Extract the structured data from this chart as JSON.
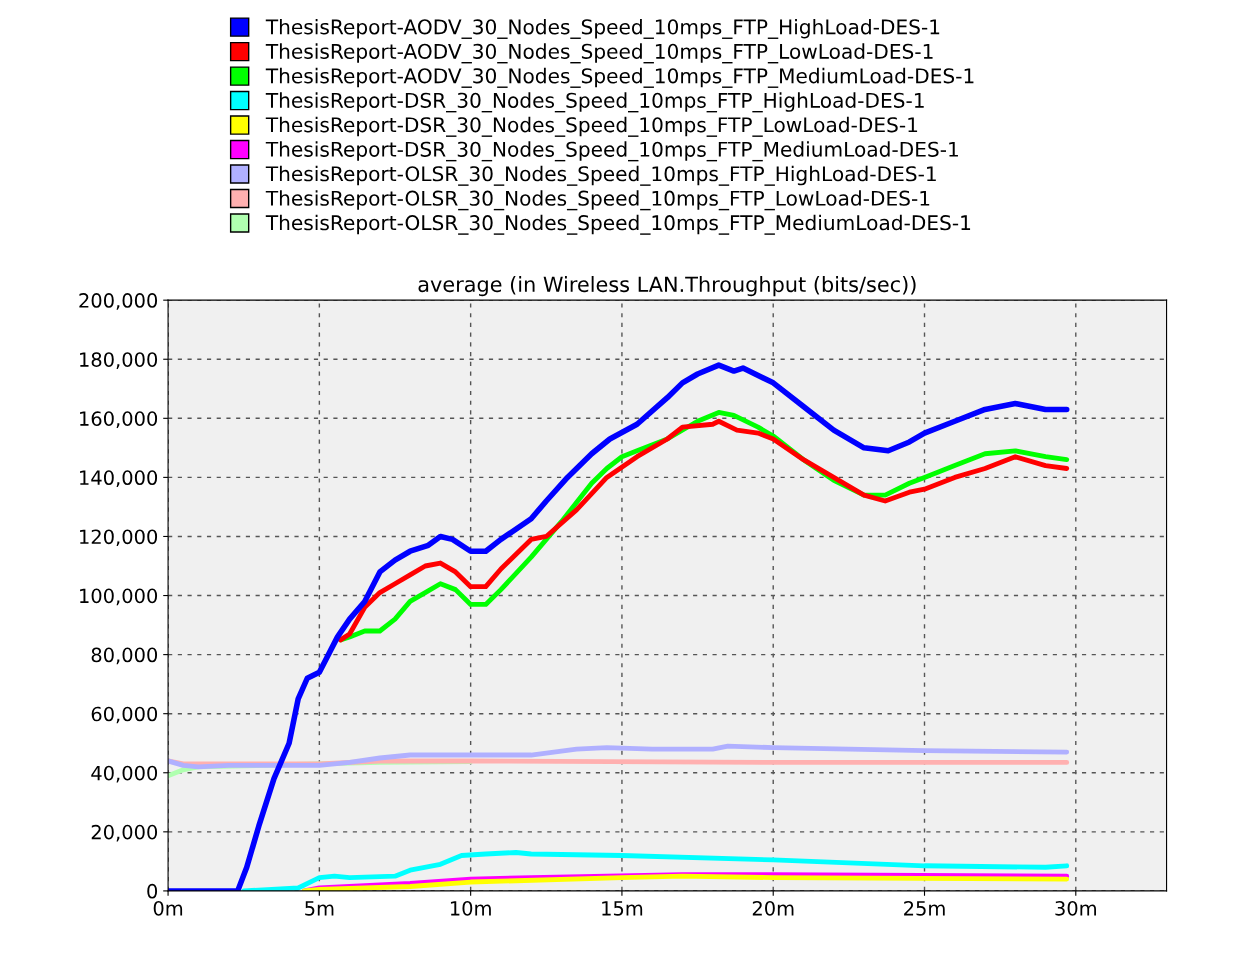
{
  "chart_data": {
    "type": "line",
    "title": "average (in Wireless LAN.Throughput (bits/sec))",
    "xlim": [
      0,
      33
    ],
    "xticks": [
      {
        "value": 0,
        "label": "0m"
      },
      {
        "value": 5,
        "label": "5m"
      },
      {
        "value": 10,
        "label": "10m"
      },
      {
        "value": 15,
        "label": "15m"
      },
      {
        "value": 20,
        "label": "20m"
      },
      {
        "value": 25,
        "label": "25m"
      },
      {
        "value": 30,
        "label": "30m"
      }
    ],
    "ylim": [
      0,
      200000
    ],
    "yticks": [
      {
        "value": 0,
        "label": "0"
      },
      {
        "value": 20000,
        "label": "20,000"
      },
      {
        "value": 40000,
        "label": "40,000"
      },
      {
        "value": 60000,
        "label": "60,000"
      },
      {
        "value": 80000,
        "label": "80,000"
      },
      {
        "value": 100000,
        "label": "100,000"
      },
      {
        "value": 120000,
        "label": "120,000"
      },
      {
        "value": 140000,
        "label": "140,000"
      },
      {
        "value": 160000,
        "label": "160,000"
      },
      {
        "value": 180000,
        "label": "180,000"
      },
      {
        "value": 200000,
        "label": "200,000"
      }
    ],
    "grid": true,
    "legend": "top",
    "marker": "none",
    "line_style": "solid",
    "series": [
      {
        "name": "ThesisReport-AODV_30_Nodes_Speed_10mps_FTP_HighLoad-DES-1",
        "color": "#0000ff",
        "x": [
          0,
          2.3,
          2.6,
          3,
          3.5,
          4,
          4.3,
          4.6,
          5,
          5.6,
          6,
          6.5,
          7,
          7.5,
          8,
          8.6,
          9,
          9.4,
          10,
          10.5,
          11,
          12,
          12.5,
          13.2,
          14,
          14.6,
          15.5,
          16.5,
          17,
          17.5,
          18.2,
          18.7,
          19,
          20,
          21,
          22,
          23,
          23.8,
          24.5,
          25,
          26,
          27,
          28,
          29,
          29.7
        ],
        "values": [
          0,
          0,
          8000,
          22000,
          38000,
          50000,
          65000,
          72000,
          74000,
          86000,
          92000,
          98000,
          108000,
          112000,
          115000,
          117000,
          120000,
          119000,
          115000,
          115000,
          119000,
          126000,
          132000,
          140000,
          148000,
          153000,
          158000,
          167000,
          172000,
          175000,
          178000,
          176000,
          177000,
          172000,
          164000,
          156000,
          150000,
          149000,
          152000,
          155000,
          159000,
          163000,
          165000,
          163000,
          163000
        ]
      },
      {
        "name": "ThesisReport-AODV_30_Nodes_Speed_10mps_FTP_LowLoad-DES-1",
        "color": "#ff0000",
        "x": [
          5.7,
          6,
          6.5,
          7,
          7.5,
          8,
          8.5,
          9,
          9.5,
          10,
          10.5,
          11,
          11.5,
          12,
          12.5,
          13.5,
          14.5,
          15.5,
          16.5,
          17,
          18,
          18.2,
          18.8,
          19.5,
          20,
          21,
          22,
          23,
          23.7,
          24.5,
          25,
          26,
          27,
          28,
          29,
          29.7
        ],
        "values": [
          85000,
          87000,
          96000,
          101000,
          104000,
          107000,
          110000,
          111000,
          108000,
          103000,
          103000,
          109000,
          114000,
          119000,
          120000,
          129000,
          140000,
          147000,
          153000,
          157000,
          158000,
          159000,
          156000,
          155000,
          153000,
          146000,
          140000,
          134000,
          132000,
          135000,
          136000,
          140000,
          143000,
          147000,
          144000,
          143000
        ]
      },
      {
        "name": "ThesisReport-AODV_30_Nodes_Speed_10mps_FTP_MediumLoad-DES-1",
        "color": "#00ff00",
        "x": [
          5.7,
          6,
          6.5,
          7,
          7.5,
          8,
          8.5,
          9,
          9.5,
          10,
          10.5,
          11,
          12,
          13,
          14,
          14.5,
          15,
          15.5,
          16.5,
          17.5,
          18.2,
          18.7,
          19.5,
          20,
          21,
          22,
          23,
          23.7,
          24.5,
          25,
          26,
          27,
          28,
          29,
          29.7
        ],
        "values": [
          85000,
          86000,
          88000,
          88000,
          92000,
          98000,
          101000,
          104000,
          102000,
          97000,
          97000,
          102000,
          113000,
          125000,
          138000,
          143000,
          147000,
          149000,
          153000,
          159000,
          162000,
          161000,
          157000,
          154000,
          146000,
          139000,
          134000,
          134000,
          138000,
          140000,
          144000,
          148000,
          149000,
          147000,
          146000
        ]
      },
      {
        "name": "ThesisReport-DSR_30_Nodes_Speed_10mps_FTP_HighLoad-DES-1",
        "color": "#00ffff",
        "x": [
          2.5,
          4.3,
          5,
          5.5,
          6,
          7.5,
          8,
          9,
          9.7,
          10.5,
          11.5,
          12,
          15,
          20,
          25,
          29,
          29.7
        ],
        "values": [
          0,
          1000,
          4500,
          5000,
          4500,
          5000,
          7000,
          9000,
          12000,
          12500,
          13000,
          12500,
          12000,
          10500,
          8500,
          8000,
          8500
        ]
      },
      {
        "name": "ThesisReport-DSR_30_Nodes_Speed_10mps_FTP_LowLoad-DES-1",
        "color": "#ffff00",
        "x": [
          4.5,
          5,
          8,
          10,
          15,
          17,
          20,
          29.7
        ],
        "values": [
          0,
          500,
          1500,
          3000,
          4500,
          5000,
          4500,
          4000
        ]
      },
      {
        "name": "ThesisReport-DSR_30_Nodes_Speed_10mps_FTP_MediumLoad-DES-1",
        "color": "#ff00ff",
        "x": [
          4.5,
          5,
          8,
          10,
          12,
          17,
          20,
          29.7
        ],
        "values": [
          0,
          1000,
          2500,
          4000,
          4500,
          5500,
          5500,
          5000
        ]
      },
      {
        "name": "ThesisReport-OLSR_30_Nodes_Speed_10mps_FTP_HighLoad-DES-1",
        "color": "#b0b0ff",
        "x": [
          0,
          0.5,
          1,
          2,
          5,
          6,
          7,
          8,
          10,
          12,
          13.5,
          14.5,
          16,
          18,
          18.5,
          20,
          25,
          29.7
        ],
        "values": [
          44000,
          42500,
          42000,
          42500,
          42500,
          43500,
          45000,
          46000,
          46000,
          46000,
          48000,
          48500,
          48000,
          48000,
          49000,
          48500,
          47500,
          47000
        ]
      },
      {
        "name": "ThesisReport-OLSR_30_Nodes_Speed_10mps_FTP_LowLoad-DES-1",
        "color": "#ffb0b0",
        "x": [
          0,
          0.5,
          5,
          7,
          10,
          20,
          29.7
        ],
        "values": [
          44000,
          43000,
          43000,
          44000,
          44000,
          43500,
          43500
        ]
      },
      {
        "name": "ThesisReport-OLSR_30_Nodes_Speed_10mps_FTP_MediumLoad-DES-1",
        "color": "#b0ffb0",
        "x": [
          0,
          0.5,
          1,
          7,
          10
        ],
        "values": [
          39000,
          41000,
          42000,
          43500,
          43800
        ]
      }
    ]
  }
}
